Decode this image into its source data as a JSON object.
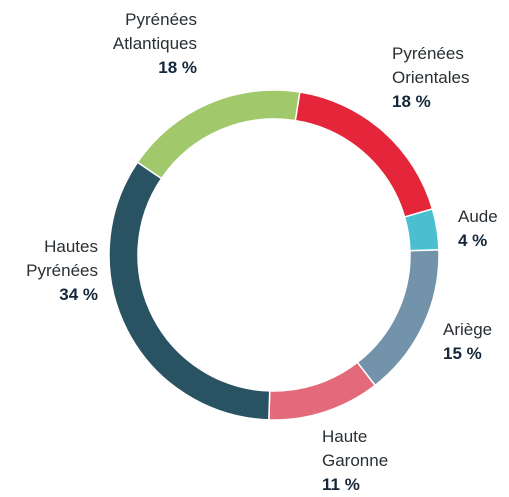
{
  "chart_data": {
    "type": "donut",
    "categories": [
      "Pyrénées Orientales",
      "Aude",
      "Ariège",
      "Haute Garonne",
      "Hautes Pyrénées",
      "Pyrénées Atlantiques"
    ],
    "values": [
      18,
      4,
      15,
      11,
      34,
      18
    ],
    "value_labels": [
      "18 %",
      "4 %",
      "15 %",
      "11 %",
      "34 %",
      "18 %"
    ],
    "colors": [
      "#e5253a",
      "#4bbfcf",
      "#7393aa",
      "#e26a7a",
      "#295263",
      "#a1c96c"
    ]
  }
}
